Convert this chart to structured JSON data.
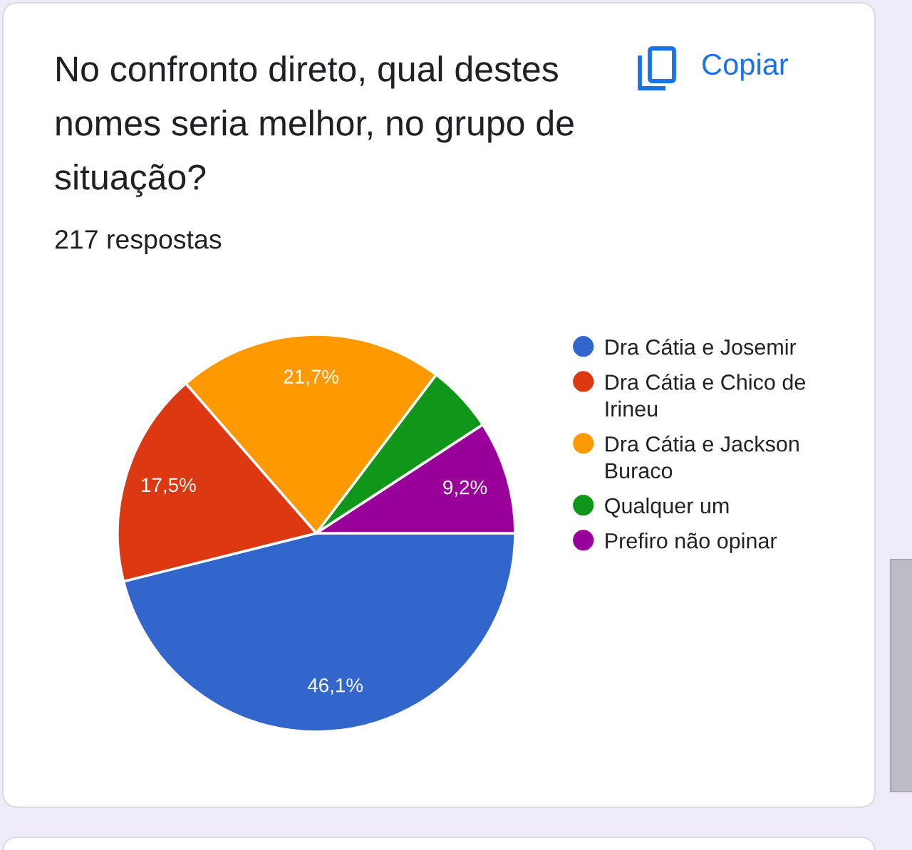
{
  "chart_data": {
    "type": "pie",
    "title": "No confronto direto, qual destes nomes seria melhor, no grupo de situação?",
    "subtitle": "217 respostas",
    "categories": [
      "Dra Cátia e Josemir",
      "Dra Cátia e Chico de Irineu",
      "Dra Cátia e Jackson Buraco",
      "Qualquer um",
      "Prefiro não opinar"
    ],
    "values": [
      46.1,
      17.5,
      21.7,
      5.5,
      9.2
    ],
    "colors": [
      "#3366cc",
      "#dc3912",
      "#ff9900",
      "#109618",
      "#990099"
    ],
    "value_labels": [
      "46,1%",
      "17,5%",
      "21,7%",
      null,
      "9,2%"
    ],
    "legend": "right",
    "annotations": [
      "Copiar"
    ]
  }
}
